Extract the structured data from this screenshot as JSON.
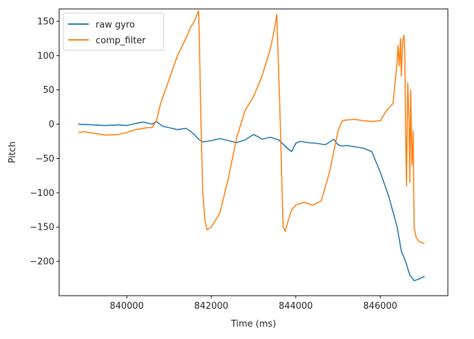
{
  "chart_data": {
    "type": "line",
    "title": "",
    "xlabel": "Time (ms)",
    "ylabel": "Pitch",
    "xlim": [
      838400,
      847600
    ],
    "ylim": [
      -250,
      168
    ],
    "xticks": [
      840000,
      842000,
      844000,
      846000
    ],
    "yticks": [
      -200,
      -150,
      -100,
      -50,
      0,
      50,
      100,
      150
    ],
    "x_tick_labels": [
      "840000",
      "842000",
      "844000",
      "846000"
    ],
    "y_tick_labels": [
      "−200",
      "−150",
      "−100",
      "−50",
      "0",
      "50",
      "100",
      "150"
    ],
    "grid": false,
    "legend_position": "top-left",
    "series": [
      {
        "name": "raw gyro",
        "color": "#1f77b4",
        "x": [
          838850,
          839200,
          839500,
          839800,
          840000,
          840200,
          840400,
          840600,
          840700,
          840850,
          841000,
          841200,
          841400,
          841500,
          841600,
          841700,
          841800,
          842000,
          842200,
          842400,
          842600,
          842800,
          843000,
          843100,
          843200,
          843400,
          843600,
          843800,
          843900,
          844000,
          844100,
          844300,
          844500,
          844700,
          844900,
          845000,
          845100,
          845200,
          845400,
          845600,
          845800,
          846000,
          846200,
          846400,
          846500,
          846600,
          846700,
          846800,
          846900,
          847000,
          847050
        ],
        "y": [
          0,
          -1,
          -2,
          -1,
          -2,
          1,
          3,
          0,
          4,
          -3,
          -5,
          -8,
          -6,
          -10,
          -15,
          -22,
          -26,
          -24,
          -21,
          -24,
          -27,
          -23,
          -15,
          -18,
          -22,
          -19,
          -23,
          -35,
          -40,
          -28,
          -25,
          -27,
          -28,
          -30,
          -22,
          -30,
          -32,
          -31,
          -33,
          -35,
          -40,
          -70,
          -105,
          -150,
          -185,
          -200,
          -220,
          -228,
          -226,
          -223,
          -222
        ]
      },
      {
        "name": "comp_filter",
        "color": "#ff7f0e",
        "x": [
          838850,
          839000,
          839200,
          839500,
          839800,
          840000,
          840200,
          840500,
          840600,
          840700,
          840800,
          841000,
          841200,
          841400,
          841500,
          841600,
          841650,
          841700,
          841720,
          841750,
          841800,
          841850,
          841900,
          842000,
          842200,
          842400,
          842600,
          842800,
          843000,
          843200,
          843400,
          843500,
          843550,
          843620,
          843700,
          843750,
          843800,
          843900,
          844000,
          844200,
          844400,
          844600,
          844800,
          845000,
          845100,
          845200,
          845400,
          845600,
          845800,
          846000,
          846150,
          846300,
          846400,
          846420,
          846450,
          846480,
          846500,
          846530,
          846560,
          846580,
          846600,
          846620,
          846650,
          846680,
          846700,
          846720,
          846750,
          846780,
          846800,
          846850,
          846900,
          846950,
          847000,
          847050
        ],
        "y": [
          -12,
          -11,
          -13,
          -16,
          -15,
          -12,
          -8,
          -5,
          -5,
          5,
          30,
          65,
          100,
          125,
          140,
          150,
          158,
          165,
          120,
          20,
          -100,
          -140,
          -154,
          -150,
          -130,
          -80,
          -20,
          20,
          40,
          70,
          110,
          140,
          160,
          30,
          -150,
          -156,
          -145,
          -125,
          -118,
          -114,
          -118,
          -112,
          -70,
          -10,
          5,
          6,
          7,
          5,
          4,
          5,
          20,
          30,
          90,
          115,
          85,
          125,
          70,
          120,
          130,
          105,
          -10,
          -90,
          60,
          10,
          -85,
          50,
          -60,
          -10,
          -150,
          -165,
          -170,
          -172,
          -173,
          -174
        ]
      }
    ]
  }
}
